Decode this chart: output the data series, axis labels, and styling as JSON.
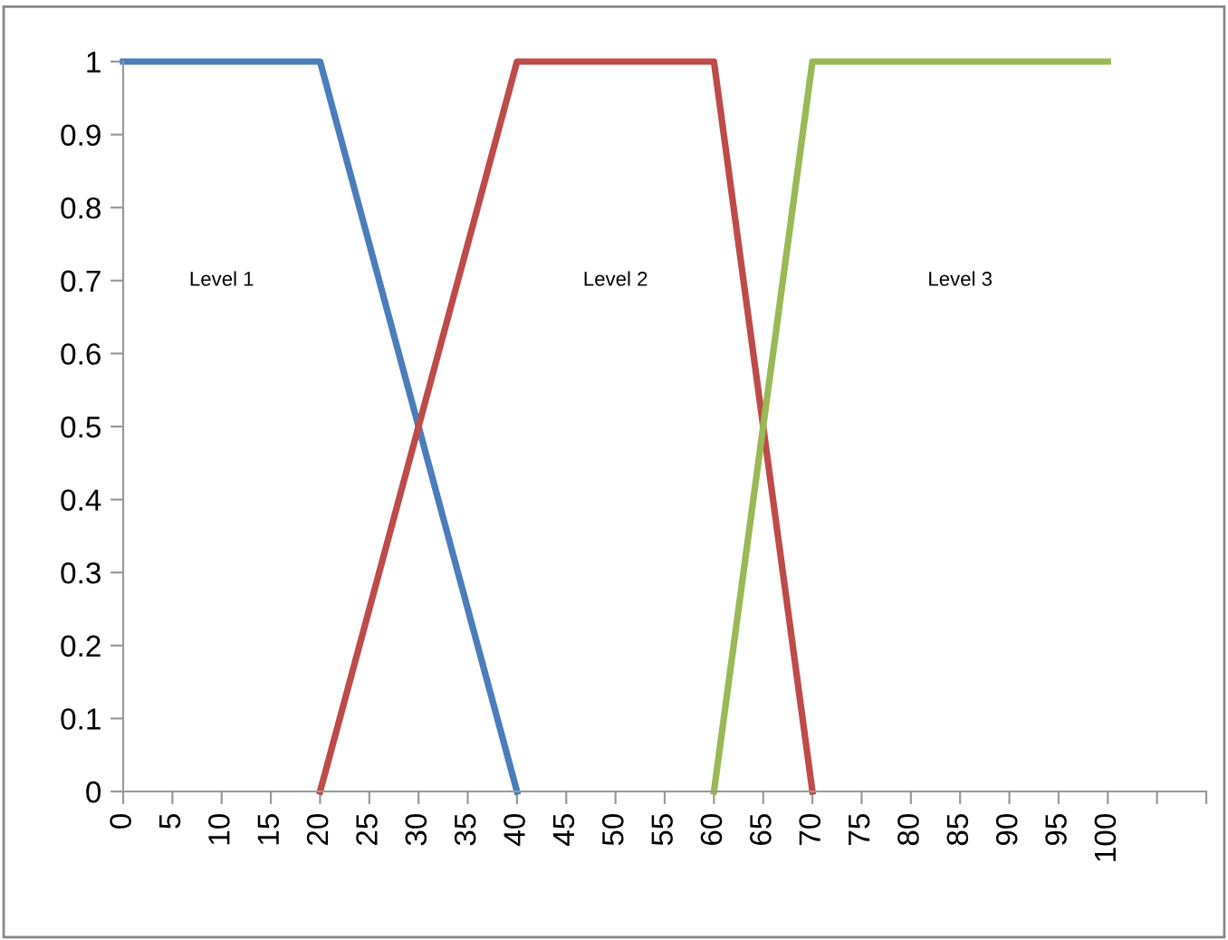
{
  "chart_data": {
    "type": "line",
    "series": [
      {
        "color": "#4a7ebb",
        "x": [
          0,
          20,
          40
        ],
        "values": [
          1,
          1,
          0
        ]
      },
      {
        "color": "#be4b48",
        "x": [
          20,
          40,
          60,
          70
        ],
        "values": [
          0,
          1,
          1,
          0
        ]
      },
      {
        "color": "#98b954",
        "x": [
          60,
          70,
          100
        ],
        "values": [
          0,
          1,
          1
        ]
      }
    ],
    "annotations": [
      "Level 1",
      "Level 2",
      "Level 3"
    ],
    "xlim": [
      0,
      110
    ],
    "xticks": [
      0,
      5,
      10,
      15,
      20,
      25,
      30,
      35,
      40,
      45,
      50,
      55,
      60,
      65,
      70,
      75,
      80,
      85,
      90,
      95,
      100,
      {
        "value": 105,
        "label": null
      },
      {
        "value": 110,
        "label": null
      }
    ],
    "ylim": [
      0,
      1
    ],
    "yticks": [
      0,
      0.1,
      0.2,
      0.3,
      0.4,
      0.5,
      0.6,
      0.7,
      0.8,
      0.9,
      1
    ],
    "grid": false,
    "legend": false,
    "marker": "none",
    "line_style": "solid"
  }
}
